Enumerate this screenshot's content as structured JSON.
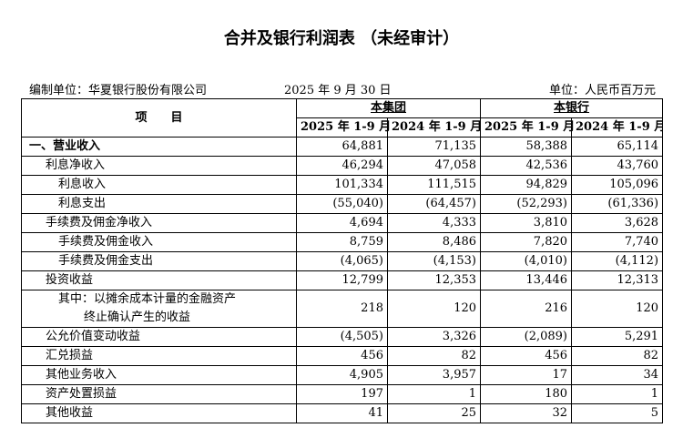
{
  "header": {
    "title": "合并及银行利润表 （未经审计）",
    "preparer": "编制单位：华夏银行股份有限公司",
    "date": "2025 年 9 月 30 日",
    "unit": "单位：人民币百万元"
  },
  "table": {
    "item_header": "项　　目",
    "groups": [
      "本集团",
      "本银行"
    ],
    "periods": [
      "2025 年 1-9 月",
      "2024 年 1-9 月",
      "2025 年 1-9 月",
      "2024 年 1-9 月"
    ],
    "rows": [
      {
        "label": "一、营业收入",
        "values": [
          "64,881",
          "71,135",
          "58,388",
          "65,114"
        ]
      },
      {
        "label": "利息净收入",
        "values": [
          "46,294",
          "47,058",
          "42,536",
          "43,760"
        ]
      },
      {
        "label": "利息收入",
        "values": [
          "101,334",
          "111,515",
          "94,829",
          "105,096"
        ]
      },
      {
        "label": "利息支出",
        "values": [
          "(55,040)",
          "(64,457)",
          "(52,293)",
          "(61,336)"
        ]
      },
      {
        "label": "手续费及佣金净收入",
        "values": [
          "4,694",
          "4,333",
          "3,810",
          "3,628"
        ]
      },
      {
        "label": "手续费及佣金收入",
        "values": [
          "8,759",
          "8,486",
          "7,820",
          "7,740"
        ]
      },
      {
        "label": "手续费及佣金支出",
        "values": [
          "(4,065)",
          "(4,153)",
          "(4,010)",
          "(4,112)"
        ]
      },
      {
        "label": "投资收益",
        "values": [
          "12,799",
          "12,353",
          "13,446",
          "12,313"
        ]
      },
      {
        "label": [
          "其中：以摊余成本计量的金融资产",
          "终止确认产生的收益"
        ],
        "values": [
          "218",
          "120",
          "216",
          "120"
        ]
      },
      {
        "label": "公允价值变动收益",
        "values": [
          "(4,505)",
          "3,326",
          "(2,089)",
          "5,291"
        ]
      },
      {
        "label": "汇兑损益",
        "values": [
          "456",
          "82",
          "456",
          "82"
        ]
      },
      {
        "label": "其他业务收入",
        "values": [
          "4,905",
          "3,957",
          "17",
          "34"
        ]
      },
      {
        "label": "资产处置损益",
        "values": [
          "197",
          "1",
          "180",
          "1"
        ]
      },
      {
        "label": "其他收益",
        "values": [
          "41",
          "25",
          "32",
          "5"
        ]
      }
    ]
  }
}
